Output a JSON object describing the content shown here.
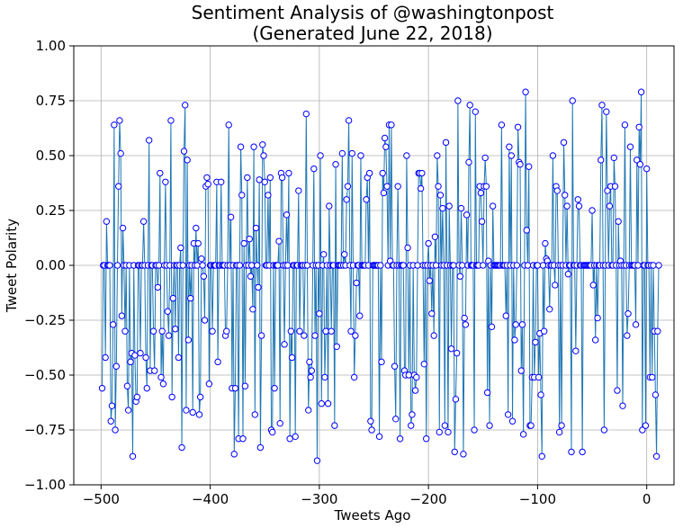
{
  "chart_data": {
    "type": "line",
    "title": "Sentiment Analysis of @washingtonpost",
    "subtitle": "(Generated June 22, 2018)",
    "xlabel": "Tweets Ago",
    "ylabel": "Tweet Polarity",
    "xlim": [
      -525,
      25
    ],
    "ylim": [
      -1.0,
      1.0
    ],
    "x_ticks": [
      -500,
      -400,
      -300,
      -200,
      -100,
      0
    ],
    "y_ticks": [
      -1.0,
      -0.75,
      -0.5,
      -0.25,
      0.0,
      0.25,
      0.5,
      0.75,
      1.0
    ],
    "x_tick_labels": [
      "−500",
      "−400",
      "−300",
      "−200",
      "−100",
      "0"
    ],
    "y_tick_labels": [
      "−1.00",
      "−0.75",
      "−0.50",
      "−0.25",
      "0.00",
      "0.25",
      "0.50",
      "0.75",
      "1.00"
    ],
    "grid": true,
    "x_start": -499,
    "x_step": 1,
    "values": [
      -0.56,
      0.0,
      0.0,
      -0.42,
      0.2,
      0.0,
      0.0,
      0.0,
      -0.71,
      -0.64,
      -0.27,
      0.64,
      -0.75,
      -0.46,
      0.0,
      0.36,
      0.66,
      0.51,
      -0.23,
      0.17,
      0.0,
      -0.3,
      0.0,
      -0.55,
      -0.66,
      0.0,
      -0.44,
      -0.4,
      -0.87,
      0.0,
      -0.41,
      -0.62,
      -0.6,
      0.0,
      0.0,
      -0.4,
      0.0,
      0.0,
      0.2,
      0.0,
      -0.42,
      -0.56,
      0.0,
      0.57,
      -0.48,
      0.0,
      0.0,
      -0.3,
      -0.48,
      0.0,
      0.0,
      -0.1,
      0.0,
      0.42,
      -0.51,
      -0.3,
      -0.54,
      0.0,
      0.38,
      0.0,
      -0.21,
      -0.32,
      0.0,
      0.66,
      -0.6,
      -0.15,
      0.0,
      -0.29,
      0.0,
      0.0,
      -0.42,
      0.0,
      0.08,
      -0.83,
      0.0,
      0.52,
      0.73,
      -0.66,
      0.48,
      -0.34,
      0.0,
      -0.15,
      0.0,
      -0.67,
      0.1,
      0.0,
      0.17,
      0.0,
      0.1,
      -0.68,
      -0.6,
      0.03,
      0.0,
      -0.05,
      -0.25,
      0.36,
      0.4,
      0.37,
      -0.54,
      0.0,
      0.0,
      -0.3,
      0.0,
      0.0,
      0.0,
      0.38,
      -0.44,
      0.0,
      0.0,
      0.38,
      0.0,
      0.0,
      0.0,
      -0.32,
      -0.3,
      0.0,
      0.64,
      0.0,
      0.22,
      -0.56,
      0.0,
      -0.86,
      -0.56,
      0.0,
      0.0,
      -0.79,
      0.0,
      0.54,
      0.32,
      -0.79,
      0.1,
      -0.55,
      0.0,
      0.4,
      0.0,
      0.12,
      -0.05,
      0.0,
      -0.2,
      0.54,
      -0.68,
      0.17,
      0.0,
      -0.1,
      0.39,
      -0.83,
      -0.32,
      0.55,
      0.5,
      0.38,
      0.0,
      0.0,
      0.32,
      0.0,
      0.4,
      -0.75,
      -0.76,
      0.0,
      -0.56,
      0.0,
      0.0,
      0.0,
      0.11,
      -0.72,
      0.42,
      0.4,
      0.0,
      -0.36,
      0.0,
      0.23,
      0.0,
      0.42,
      -0.79,
      -0.3,
      -0.42,
      0.0,
      0.0,
      -0.78,
      0.0,
      0.0,
      0.34,
      -0.3,
      0.0,
      0.0,
      0.0,
      -0.32,
      0.0,
      0.69,
      0.0,
      -0.66,
      -0.44,
      -0.51,
      -0.48,
      0.0,
      0.44,
      -0.32,
      0.0,
      -0.89,
      0.0,
      -0.22,
      0.5,
      -0.63,
      0.0,
      0.05,
      -0.51,
      -0.3,
      0.0,
      -0.63,
      0.27,
      0.0,
      -0.3,
      0.0,
      0.0,
      -0.73,
      0.46,
      -0.37,
      0.0,
      0.0,
      0.0,
      0.0,
      0.51,
      0.0,
      0.05,
      0.0,
      0.3,
      0.36,
      0.66,
      0.0,
      -0.3,
      0.51,
      0.0,
      -0.51,
      -0.32,
      -0.08,
      0.0,
      0.0,
      -0.23,
      0.5,
      0.0,
      0.0,
      0.0,
      0.0,
      0.3,
      0.4,
      0.0,
      0.42,
      -0.71,
      -0.75,
      0.0,
      0.0,
      0.0,
      0.0,
      0.0,
      0.0,
      -0.78,
      0.0,
      -0.44,
      0.42,
      0.33,
      0.58,
      0.54,
      0.36,
      0.0,
      0.64,
      0.02,
      0.64,
      0.0,
      0.0,
      -0.46,
      -0.7,
      0.0,
      0.36,
      0.0,
      -0.79,
      0.0,
      0.0,
      0.0,
      -0.48,
      -0.5,
      0.5,
      0.08,
      -0.5,
      0.0,
      -0.73,
      -0.68,
      0.0,
      -0.5,
      -0.57,
      -0.51,
      0.0,
      0.42,
      0.42,
      0.35,
      0.42,
      0.0,
      -0.45,
      0.0,
      -0.79,
      0.0,
      0.1,
      -0.07,
      0.0,
      -0.22,
      0.0,
      -0.32,
      0.13,
      0.0,
      0.5,
      0.36,
      -0.76,
      0.32,
      0.0,
      0.26,
      0.0,
      -0.73,
      0.56,
      0.0,
      -0.76,
      0.27,
      0.0,
      -0.38,
      0.0,
      0.0,
      -0.85,
      -0.61,
      -0.4,
      0.75,
      0.0,
      -0.05,
      0.26,
      0.0,
      -0.86,
      -0.24,
      -0.27,
      0.23,
      0.0,
      0.47,
      0.73,
      0.0,
      0.0,
      0.0,
      -0.75,
      0.7,
      0.0,
      0.0,
      0.0,
      0.36,
      0.33,
      0.2,
      0.0,
      0.36,
      0.49,
      0.36,
      -0.58,
      0.02,
      -0.73,
      0.0,
      -0.28,
      0.27,
      0.0,
      0.0,
      0.0,
      0.0,
      0.0,
      0.0,
      0.0,
      0.64,
      0.0,
      0.0,
      0.0,
      -0.23,
      0.0,
      -0.68,
      0.54,
      0.0,
      0.5,
      -0.71,
      0.0,
      -0.34,
      -0.27,
      0.0,
      0.63,
      0.47,
      0.46,
      -0.48,
      -0.27,
      -0.77,
      0.0,
      0.79,
      0.16,
      0.0,
      0.45,
      -0.73,
      -0.73,
      -0.51,
      0.0,
      -0.51,
      -0.35,
      0.0,
      0.0,
      -0.51,
      -0.31,
      -0.59,
      -0.87,
      0.0,
      -0.3,
      0.1,
      0.03,
      0.02,
      0.0,
      -0.2,
      0.0,
      0.0,
      0.5,
      0.0,
      -0.09,
      0.36,
      0.34,
      0.0,
      -0.76,
      0.0,
      -0.73,
      0.0,
      0.56,
      0.32,
      0.0,
      0.27,
      -0.04,
      0.0,
      0.0,
      -0.85,
      0.75,
      0.0,
      0.0,
      -0.39,
      0.0,
      0.3,
      0.27,
      0.0,
      0.0,
      -0.85,
      0.0,
      0.0,
      0.0,
      0.0,
      0.0,
      0.0,
      0.0,
      0.0,
      0.25,
      -0.09,
      0.0,
      -0.34,
      0.0,
      -0.24,
      0.0,
      0.0,
      0.48,
      0.73,
      0.0,
      -0.75,
      0.0,
      0.7,
      0.34,
      0.0,
      0.27,
      0.36,
      0.0,
      0.0,
      0.49,
      0.36,
      0.0,
      -0.57,
      0.2,
      0.0,
      0.02,
      0.0,
      -0.64,
      0.0,
      0.64,
      0.0,
      -0.32,
      -0.22,
      0.0,
      0.54,
      0.0,
      0.0,
      0.0,
      0.0,
      -0.27,
      0.48,
      0.0,
      0.63,
      0.46,
      0.79,
      -0.75,
      0.0,
      0.0,
      -0.73,
      0.44,
      0.0,
      0.0,
      -0.51,
      0.0,
      -0.51,
      0.0,
      -0.3,
      -0.59,
      -0.87,
      -0.3,
      0.0
    ]
  }
}
